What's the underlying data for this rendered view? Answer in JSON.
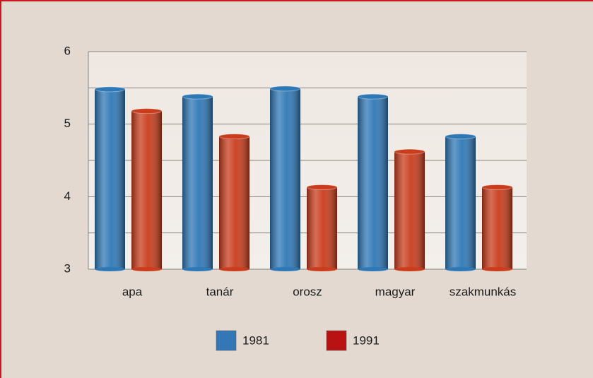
{
  "chart_data": {
    "type": "bar",
    "categories": [
      "apa",
      "tanár",
      "orosz",
      "magyar",
      "szakmunkás"
    ],
    "series": [
      {
        "name": "1981",
        "color": "#2f78b6",
        "values": [
          5.48,
          5.38,
          5.49,
          5.38,
          4.83
        ]
      },
      {
        "name": "1991",
        "color": "#c93c1c",
        "values": [
          5.18,
          4.83,
          4.13,
          4.62,
          4.13
        ]
      }
    ],
    "legend_colors": [
      "#3477b6",
      "#b81212"
    ],
    "ylim": [
      3,
      6
    ],
    "yticks": [
      3,
      4,
      5,
      6
    ],
    "minor_yticks": [
      3.5,
      4.5,
      5.5
    ],
    "grid": true
  }
}
